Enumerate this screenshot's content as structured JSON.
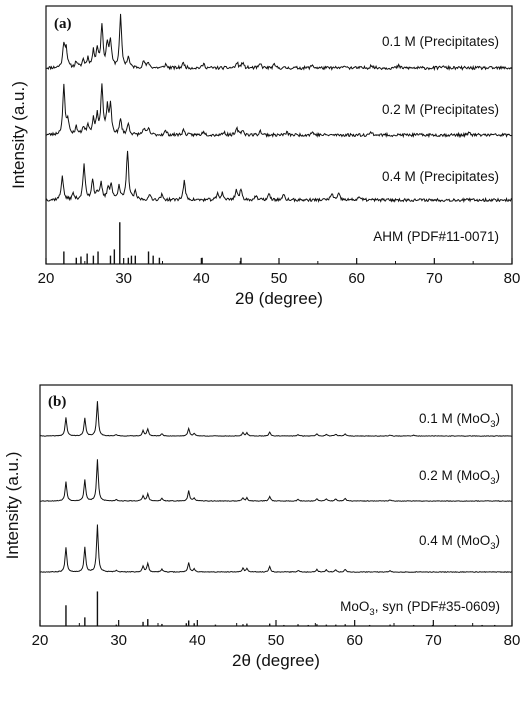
{
  "chart_data": [
    {
      "type": "line",
      "panel_label": "(a)",
      "xlabel": "2θ (degree)",
      "ylabel": "Intensity (a.u.)",
      "xlim": [
        20,
        80
      ],
      "x_ticks": [
        20,
        30,
        40,
        50,
        60,
        70,
        80
      ],
      "series": [
        {
          "name": "0.1 M (Precipitates)",
          "label_parts": [
            {
              "text": "0.1 M (Precipitates)",
              "sub": false
            }
          ],
          "noise": 0.06,
          "seed": 11,
          "peaks": [
            [
              22.3,
              0.45
            ],
            [
              22.6,
              0.35
            ],
            [
              23.9,
              0.12
            ],
            [
              24.8,
              0.15
            ],
            [
              25.4,
              0.18
            ],
            [
              26.1,
              0.3
            ],
            [
              26.6,
              0.35
            ],
            [
              27.2,
              0.82
            ],
            [
              27.9,
              0.45
            ],
            [
              28.3,
              0.5
            ],
            [
              29.6,
              1.0
            ],
            [
              30.6,
              0.2
            ],
            [
              32.6,
              0.13
            ],
            [
              33.2,
              0.1
            ],
            [
              35.4,
              0.07
            ],
            [
              37.7,
              0.1
            ],
            [
              40.3,
              0.08
            ],
            [
              44.6,
              0.1
            ],
            [
              45.3,
              0.1
            ],
            [
              47.6,
              0.08
            ],
            [
              49.4,
              0.06
            ],
            [
              54.3,
              0.06
            ],
            [
              58.6,
              0.05
            ],
            [
              61.9,
              0.06
            ],
            [
              65.4,
              0.04
            ],
            [
              71.0,
              0.04
            ]
          ]
        },
        {
          "name": "0.2 M (Precipitates)",
          "label_parts": [
            {
              "text": "0.2 M (Precipitates)",
              "sub": false
            }
          ],
          "noise": 0.06,
          "seed": 23,
          "peaks": [
            [
              22.3,
              0.95
            ],
            [
              22.8,
              0.3
            ],
            [
              23.9,
              0.15
            ],
            [
              24.8,
              0.15
            ],
            [
              25.4,
              0.2
            ],
            [
              26.1,
              0.3
            ],
            [
              26.6,
              0.35
            ],
            [
              27.2,
              0.95
            ],
            [
              27.9,
              0.5
            ],
            [
              28.3,
              0.55
            ],
            [
              29.6,
              0.3
            ],
            [
              30.6,
              0.22
            ],
            [
              32.6,
              0.13
            ],
            [
              33.2,
              0.12
            ],
            [
              35.4,
              0.08
            ],
            [
              37.7,
              0.1
            ],
            [
              40.3,
              0.08
            ],
            [
              42.9,
              0.06
            ],
            [
              44.6,
              0.12
            ],
            [
              45.3,
              0.1
            ],
            [
              47.6,
              0.08
            ],
            [
              51.0,
              0.05
            ],
            [
              54.3,
              0.06
            ],
            [
              61.9,
              0.06
            ],
            [
              74.5,
              0.04
            ]
          ]
        },
        {
          "name": "0.4 M (Precipitates)",
          "label_parts": [
            {
              "text": "0.4 M (Precipitates)",
              "sub": false
            }
          ],
          "noise": 0.06,
          "seed": 37,
          "peaks": [
            [
              22.1,
              0.5
            ],
            [
              23.5,
              0.12
            ],
            [
              24.9,
              0.72
            ],
            [
              26.0,
              0.42
            ],
            [
              26.6,
              0.15
            ],
            [
              27.1,
              0.32
            ],
            [
              28.0,
              0.25
            ],
            [
              28.4,
              0.3
            ],
            [
              29.4,
              0.3
            ],
            [
              30.5,
              1.0
            ],
            [
              31.5,
              0.15
            ],
            [
              33.4,
              0.1
            ],
            [
              34.9,
              0.1
            ],
            [
              37.8,
              0.38
            ],
            [
              42.1,
              0.12
            ],
            [
              42.7,
              0.14
            ],
            [
              44.5,
              0.2
            ],
            [
              45.1,
              0.2
            ],
            [
              47.0,
              0.08
            ],
            [
              48.7,
              0.12
            ],
            [
              50.6,
              0.1
            ],
            [
              56.8,
              0.14
            ],
            [
              57.7,
              0.12
            ],
            [
              60.3,
              0.07
            ]
          ]
        },
        {
          "name": "AHM (PDF#11-0071)",
          "label_parts": [
            {
              "text": "AHM (PDF#11-0071)",
              "sub": false
            }
          ],
          "sticks": [
            [
              22.3,
              0.3
            ],
            [
              23.9,
              0.15
            ],
            [
              24.5,
              0.18
            ],
            [
              25.3,
              0.25
            ],
            [
              26.1,
              0.2
            ],
            [
              26.7,
              0.3
            ],
            [
              28.3,
              0.2
            ],
            [
              28.8,
              0.35
            ],
            [
              29.5,
              1.0
            ],
            [
              30.6,
              0.15
            ],
            [
              31.0,
              0.2
            ],
            [
              31.5,
              0.2
            ],
            [
              33.2,
              0.3
            ],
            [
              33.8,
              0.2
            ],
            [
              34.6,
              0.15
            ],
            [
              40.1,
              0.15
            ],
            [
              45.1,
              0.15
            ]
          ]
        }
      ]
    },
    {
      "type": "line",
      "panel_label": "(b)",
      "xlabel": "2θ (degree)",
      "ylabel": "Intensity (a.u.)",
      "xlim": [
        20,
        80
      ],
      "x_ticks": [
        20,
        30,
        40,
        50,
        60,
        70,
        80
      ],
      "series": [
        {
          "name": "0.1 M (MoO3)",
          "label_parts": [
            {
              "text": "0.1 M (MoO",
              "sub": false
            },
            {
              "text": "3",
              "sub": true
            },
            {
              "text": ")",
              "sub": false
            }
          ],
          "noise": 0.012,
          "seed": 41,
          "peaks": [
            [
              23.3,
              0.42
            ],
            [
              25.7,
              0.4
            ],
            [
              27.3,
              0.78
            ],
            [
              29.7,
              0.03
            ],
            [
              33.1,
              0.12
            ],
            [
              33.7,
              0.16
            ],
            [
              35.5,
              0.05
            ],
            [
              38.9,
              0.17
            ],
            [
              39.6,
              0.06
            ],
            [
              45.8,
              0.07
            ],
            [
              46.3,
              0.07
            ],
            [
              49.2,
              0.09
            ],
            [
              52.8,
              0.03
            ],
            [
              55.2,
              0.05
            ],
            [
              56.4,
              0.04
            ],
            [
              57.6,
              0.04
            ],
            [
              58.8,
              0.05
            ],
            [
              64.5,
              0.02
            ],
            [
              67.5,
              0.02
            ]
          ]
        },
        {
          "name": "0.2 M (MoO3)",
          "label_parts": [
            {
              "text": "0.2 M (MoO",
              "sub": false
            },
            {
              "text": "3",
              "sub": true
            },
            {
              "text": ")",
              "sub": false
            }
          ],
          "noise": 0.012,
          "seed": 53,
          "peaks": [
            [
              23.3,
              0.38
            ],
            [
              25.7,
              0.42
            ],
            [
              27.3,
              0.82
            ],
            [
              29.7,
              0.03
            ],
            [
              33.1,
              0.1
            ],
            [
              33.7,
              0.14
            ],
            [
              35.5,
              0.05
            ],
            [
              38.9,
              0.2
            ],
            [
              39.6,
              0.06
            ],
            [
              45.8,
              0.06
            ],
            [
              46.3,
              0.06
            ],
            [
              49.2,
              0.09
            ],
            [
              52.8,
              0.03
            ],
            [
              55.2,
              0.04
            ],
            [
              56.4,
              0.04
            ],
            [
              57.6,
              0.04
            ],
            [
              58.8,
              0.05
            ],
            [
              64.5,
              0.02
            ]
          ]
        },
        {
          "name": "0.4 M (MoO3)",
          "label_parts": [
            {
              "text": "0.4 M (MoO",
              "sub": false
            },
            {
              "text": "3",
              "sub": true
            },
            {
              "text": ")",
              "sub": false
            }
          ],
          "noise": 0.012,
          "seed": 67,
          "peaks": [
            [
              23.3,
              0.45
            ],
            [
              25.7,
              0.45
            ],
            [
              27.3,
              0.85
            ],
            [
              29.7,
              0.03
            ],
            [
              33.1,
              0.1
            ],
            [
              33.7,
              0.16
            ],
            [
              35.5,
              0.05
            ],
            [
              38.9,
              0.17
            ],
            [
              39.6,
              0.06
            ],
            [
              45.8,
              0.07
            ],
            [
              46.3,
              0.06
            ],
            [
              49.2,
              0.1
            ],
            [
              52.8,
              0.03
            ],
            [
              55.2,
              0.05
            ],
            [
              56.4,
              0.04
            ],
            [
              57.6,
              0.04
            ],
            [
              58.8,
              0.05
            ],
            [
              64.5,
              0.02
            ]
          ]
        },
        {
          "name": "MoO3, syn (PDF#35-0609)",
          "label_parts": [
            {
              "text": "MoO",
              "sub": false
            },
            {
              "text": "3",
              "sub": true
            },
            {
              "text": ", syn (PDF#35-0609)",
              "sub": false
            }
          ],
          "sticks": [
            [
              23.3,
              0.6
            ],
            [
              25.7,
              0.25
            ],
            [
              27.3,
              1.0
            ],
            [
              29.7,
              0.04
            ],
            [
              33.1,
              0.12
            ],
            [
              33.7,
              0.2
            ],
            [
              35.5,
              0.06
            ],
            [
              38.6,
              0.08
            ],
            [
              38.9,
              0.16
            ],
            [
              39.6,
              0.08
            ],
            [
              42.3,
              0.04
            ],
            [
              45.8,
              0.05
            ],
            [
              46.3,
              0.07
            ],
            [
              49.2,
              0.07
            ],
            [
              51.0,
              0.03
            ],
            [
              52.8,
              0.05
            ],
            [
              54.1,
              0.03
            ],
            [
              55.2,
              0.05
            ],
            [
              56.4,
              0.04
            ],
            [
              57.6,
              0.04
            ],
            [
              58.8,
              0.05
            ],
            [
              61.9,
              0.03
            ],
            [
              64.5,
              0.04
            ],
            [
              67.5,
              0.03
            ],
            [
              69.9,
              0.03
            ],
            [
              72.8,
              0.03
            ],
            [
              76.2,
              0.03
            ],
            [
              77.8,
              0.03
            ]
          ]
        }
      ]
    }
  ]
}
